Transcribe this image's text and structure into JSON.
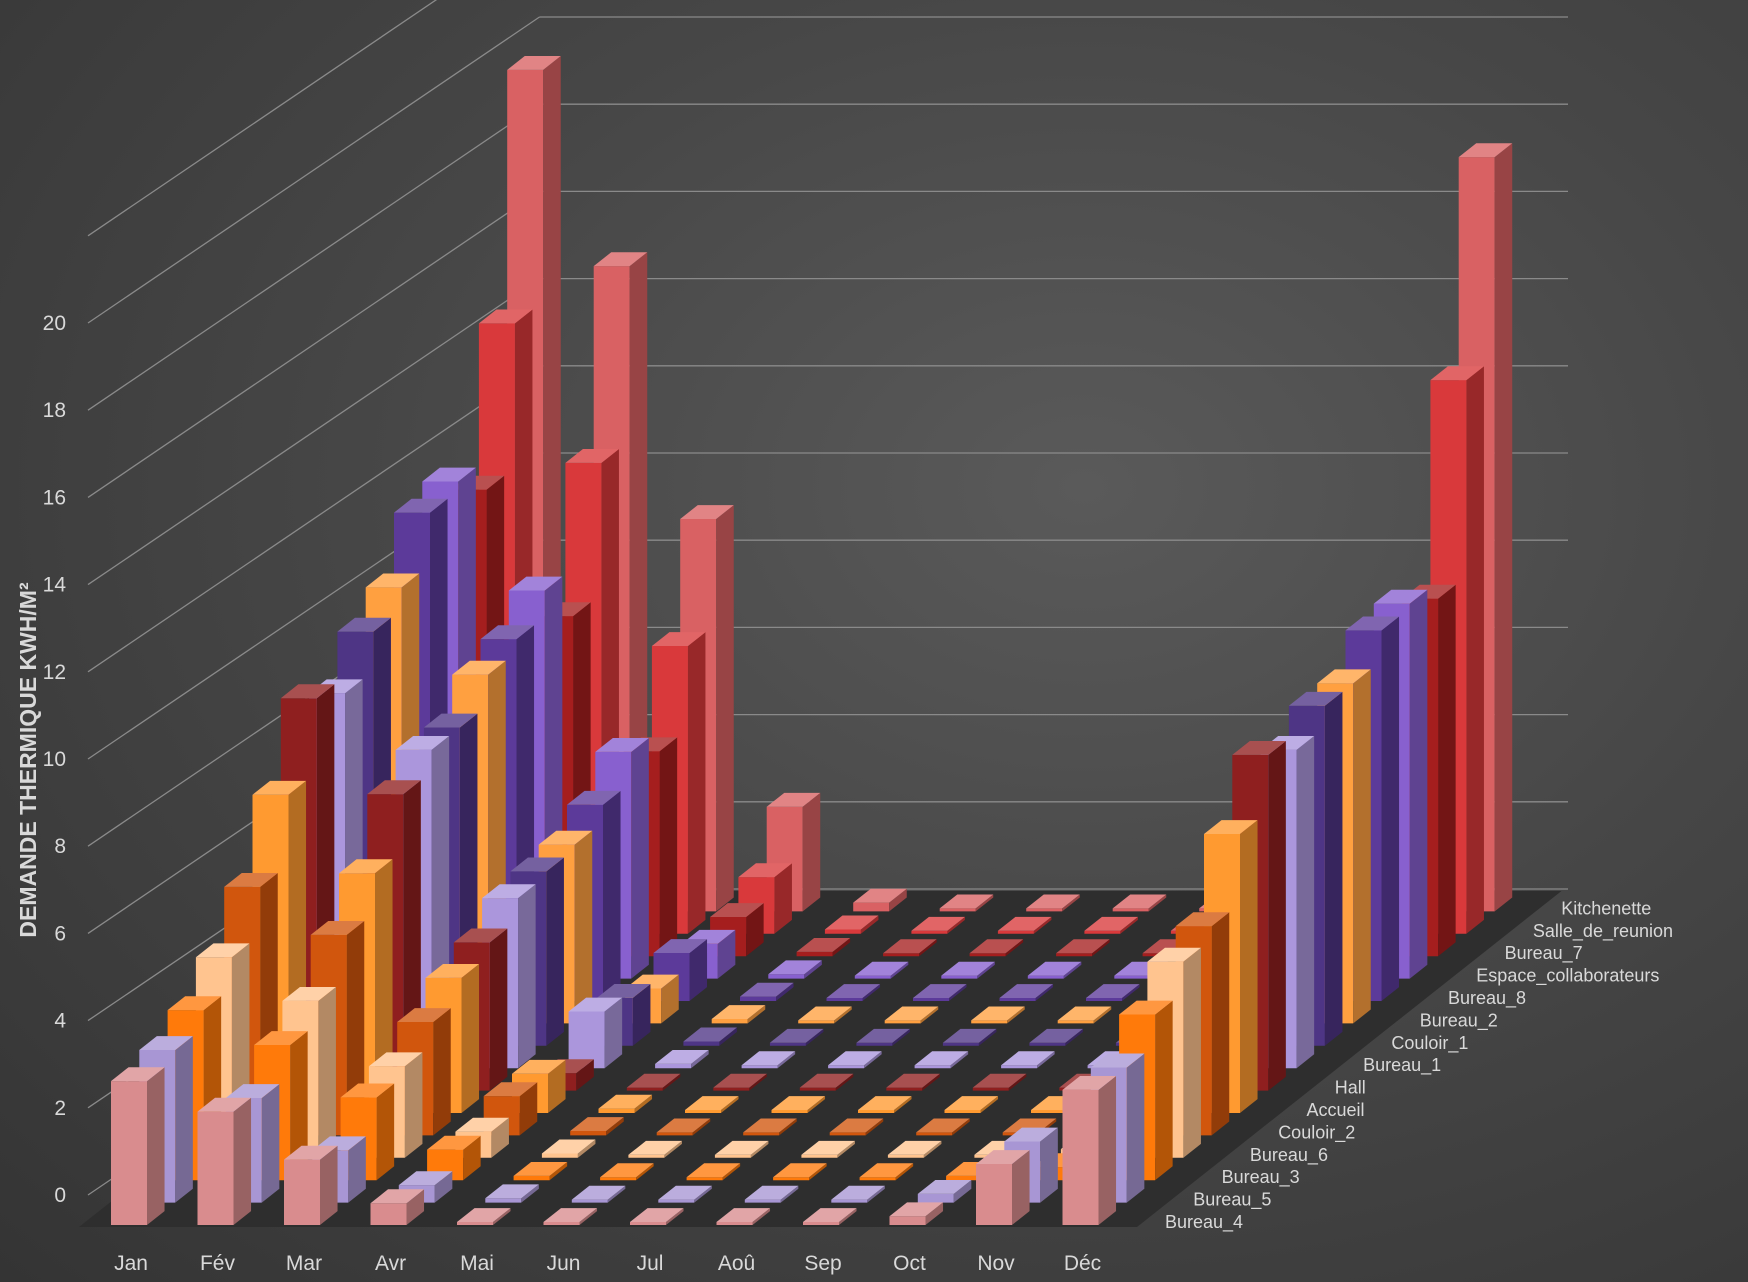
{
  "chart_data": {
    "type": "bar",
    "variant": "3d-column",
    "title": "",
    "ylabel": "DEMANDE THERMIQUE KWH/M²",
    "xlabel": "",
    "ylim": [
      0,
      20
    ],
    "yticks": [
      0,
      2,
      4,
      6,
      8,
      10,
      12,
      14,
      16,
      18,
      20
    ],
    "grid": true,
    "categories": [
      "Jan",
      "Fév",
      "Mar",
      "Avr",
      "Mai",
      "Jun",
      "Jul",
      "Aoû",
      "Sep",
      "Oct",
      "Nov",
      "Déc"
    ],
    "series": [
      {
        "name": "Bureau_4",
        "color": "#d98c8e",
        "values": [
          3.3,
          2.6,
          1.5,
          0.5,
          0.0,
          0.0,
          0.0,
          0.0,
          0.0,
          0.2,
          1.4,
          3.1
        ]
      },
      {
        "name": "Bureau_5",
        "color": "#a896d4",
        "values": [
          3.5,
          2.4,
          1.2,
          0.4,
          0.1,
          0.0,
          0.0,
          0.0,
          0.0,
          0.2,
          1.4,
          3.1
        ]
      },
      {
        "name": "Bureau_3",
        "color": "#ff7a0a",
        "values": [
          3.9,
          3.1,
          1.9,
          0.7,
          0.1,
          0.0,
          0.0,
          0.0,
          0.0,
          0.1,
          0.3,
          3.8
        ]
      },
      {
        "name": "Bureau_6",
        "color": "#ffc48f",
        "values": [
          4.6,
          3.6,
          2.1,
          0.6,
          0.1,
          0.0,
          0.0,
          0.0,
          0.0,
          0.0,
          0.2,
          4.5
        ]
      },
      {
        "name": "Couloir_2",
        "color": "#d1560d",
        "values": [
          5.7,
          4.6,
          2.6,
          0.9,
          0.1,
          0.0,
          0.0,
          0.0,
          0.0,
          0.0,
          0.4,
          4.8
        ]
      },
      {
        "name": "Accueil",
        "color": "#ff9a30",
        "values": [
          7.3,
          5.5,
          3.1,
          0.9,
          0.1,
          0.0,
          0.0,
          0.0,
          0.0,
          0.0,
          0.5,
          6.4
        ]
      },
      {
        "name": "Hall",
        "color": "#8f1f1f",
        "values": [
          9.0,
          6.8,
          3.4,
          0.4,
          0.0,
          0.0,
          0.0,
          0.0,
          0.0,
          0.0,
          0.3,
          7.7
        ]
      },
      {
        "name": "Bureau_1",
        "color": "#ab96dc",
        "values": [
          8.6,
          7.3,
          3.9,
          1.3,
          0.1,
          0.0,
          0.0,
          0.0,
          0.0,
          0.0,
          0.5,
          7.3
        ]
      },
      {
        "name": "Couloir_1",
        "color": "#4e3585",
        "values": [
          9.5,
          7.3,
          4.0,
          1.1,
          0.1,
          0.0,
          0.0,
          0.0,
          0.0,
          0.0,
          0.4,
          7.8
        ]
      },
      {
        "name": "Bureau_2",
        "color": "#ffa040",
        "values": [
          10.0,
          8.0,
          4.1,
          0.8,
          0.1,
          0.0,
          0.0,
          0.0,
          0.0,
          0.0,
          0.3,
          7.8
        ]
      },
      {
        "name": "Bureau_8",
        "color": "#5c3a9a",
        "values": [
          11.2,
          8.3,
          4.5,
          1.1,
          0.1,
          0.0,
          0.0,
          0.0,
          0.0,
          0.0,
          0.3,
          8.5
        ]
      },
      {
        "name": "Espace_collaborateurs",
        "color": "#8860cf",
        "values": [
          11.4,
          8.9,
          5.2,
          0.8,
          0.1,
          0.0,
          0.0,
          0.0,
          0.0,
          0.0,
          0.3,
          8.6
        ]
      },
      {
        "name": "Bureau_7",
        "color": "#a51e1e",
        "values": [
          10.7,
          7.8,
          4.7,
          0.9,
          0.1,
          0.0,
          0.0,
          0.0,
          0.0,
          0.0,
          0.4,
          8.2
        ]
      },
      {
        "name": "Salle_de_reunion",
        "color": "#d9393b",
        "values": [
          14.0,
          10.8,
          6.6,
          1.3,
          0.1,
          0.0,
          0.0,
          0.0,
          0.0,
          0.0,
          0.3,
          12.7
        ]
      },
      {
        "name": "Kitchenette",
        "color": "#d96163",
        "values": [
          19.3,
          14.8,
          9.0,
          2.4,
          0.2,
          0.0,
          0.0,
          0.0,
          0.0,
          0.0,
          0.3,
          17.3
        ]
      }
    ]
  }
}
